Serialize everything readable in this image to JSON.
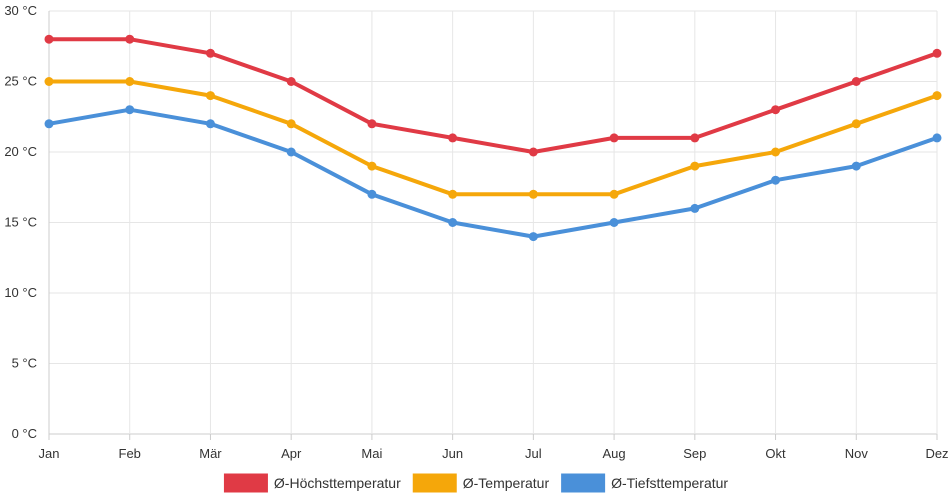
{
  "chart_data": {
    "type": "line",
    "categories": [
      "Jan",
      "Feb",
      "Mär",
      "Apr",
      "Mai",
      "Jun",
      "Jul",
      "Aug",
      "Sep",
      "Okt",
      "Nov",
      "Dez"
    ],
    "ylim": [
      0,
      30
    ],
    "yticks": [
      0,
      5,
      10,
      15,
      20,
      25,
      30
    ],
    "y_unit_suffix": " °C",
    "grid": true,
    "legend_position": "bottom",
    "series": [
      {
        "name": "Ø-Höchsttemperatur",
        "color": "#e03a45",
        "values": [
          28,
          28,
          27,
          25,
          22,
          21,
          20,
          21,
          21,
          23,
          25,
          27
        ]
      },
      {
        "name": "Ø-Temperatur",
        "color": "#f5a70a",
        "values": [
          25,
          25,
          24,
          22,
          19,
          17,
          17,
          17,
          19,
          20,
          22,
          24
        ]
      },
      {
        "name": "Ø-Tiefsttemperatur",
        "color": "#4a90d9",
        "values": [
          22,
          23,
          22,
          20,
          17,
          15,
          14,
          15,
          16,
          18,
          19,
          21
        ]
      }
    ]
  }
}
